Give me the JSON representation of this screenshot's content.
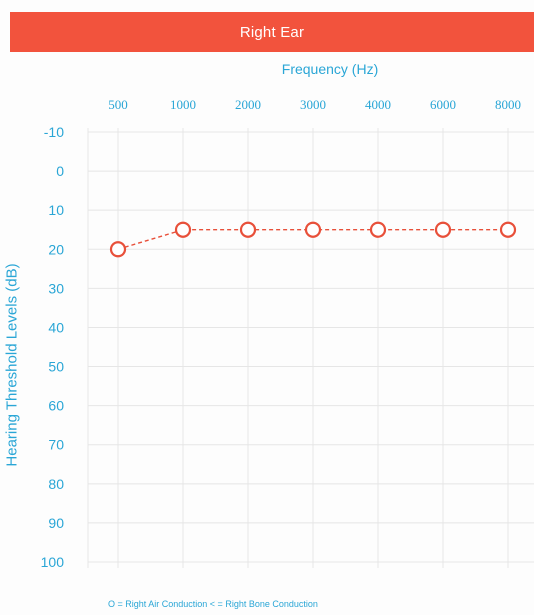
{
  "colors": {
    "header": "#f2533d",
    "text": "#2aa6d6",
    "grid": "#e6e6e6",
    "marker": "#e8503a"
  },
  "chart_data": {
    "type": "line",
    "title": "Right Ear",
    "xlabel": "Frequency (Hz)",
    "ylabel": "Hearing Threshold Levels (dB)",
    "categories": [
      "500",
      "1000",
      "2000",
      "3000",
      "4000",
      "6000",
      "8000"
    ],
    "yticks": [
      "-10",
      "0",
      "10",
      "20",
      "30",
      "40",
      "50",
      "60",
      "70",
      "80",
      "90",
      "100"
    ],
    "ylim": [
      -10,
      100
    ],
    "y_inverted": true,
    "grid": true,
    "series": [
      {
        "name": "Right Air Conduction",
        "marker": "circle",
        "line_style": "dashed",
        "values": [
          20,
          15,
          15,
          15,
          15,
          15,
          15
        ]
      }
    ],
    "legend_text": "O = Right Air Conduction   < = Right Bone Conduction",
    "legend_position": "bottom"
  }
}
